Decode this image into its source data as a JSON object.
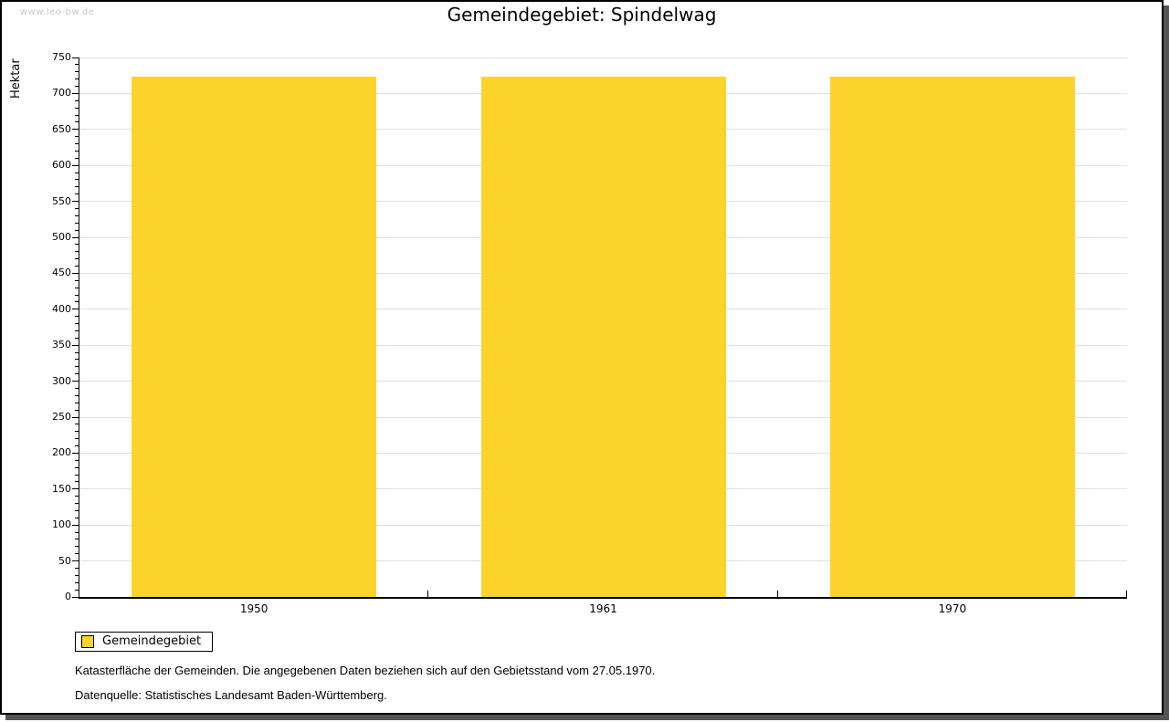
{
  "watermark": "www.leo-bw.de",
  "chart_data": {
    "type": "bar",
    "title": "Gemeindegebiet: Spindelwag",
    "ylabel": "Hektar",
    "categories": [
      "1950",
      "1961",
      "1970"
    ],
    "series": [
      {
        "name": "Gemeindegebiet",
        "values": [
          723,
          723,
          724
        ]
      }
    ],
    "ylim": [
      0,
      750
    ],
    "ytick_major": 50,
    "ytick_minor": 10,
    "grid": true,
    "legend_position": "bottom-left",
    "bar_color": "#fcd32d"
  },
  "legend": {
    "label": "Gemeindegebiet"
  },
  "footer": {
    "line1": "Katasterfläche der Gemeinden. Die angegebenen Daten beziehen sich auf den Gebietsstand vom 27.05.1970.",
    "line2": "Datenquelle: Statistisches Landesamt Baden-Württemberg."
  },
  "colors": {
    "bar": "#fcd32d",
    "grid": "#e0e0e0",
    "axis": "#000000",
    "shadow": "#555555",
    "watermark": "#c9c9c9"
  }
}
